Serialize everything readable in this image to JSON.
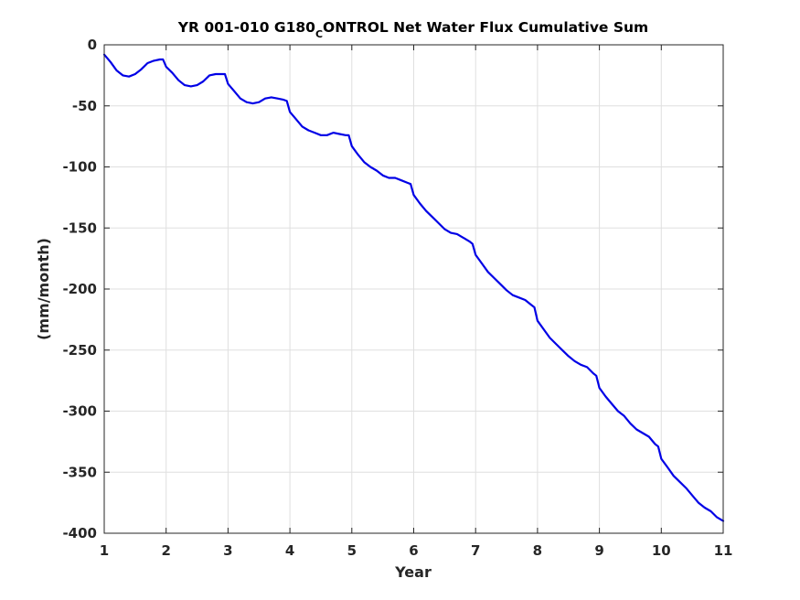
{
  "chart_data": {
    "type": "line",
    "title_main": "YR 001-010 G180",
    "title_sub": "C",
    "title_rest": "ONTROL Net Water Flux Cumulative Sum",
    "xlabel": "Year",
    "ylabel": "(mm/month)",
    "xlim": [
      1,
      11
    ],
    "ylim": [
      -400,
      0
    ],
    "x_ticks": [
      "1",
      "2",
      "3",
      "4",
      "5",
      "6",
      "7",
      "8",
      "9",
      "10",
      "11"
    ],
    "y_ticks": [
      "0",
      "-50",
      "-100",
      "-150",
      "-200",
      "-250",
      "-300",
      "-350",
      "-400"
    ],
    "grid": true,
    "series": [
      {
        "color": "#0000e6",
        "x": [
          1.0,
          1.1,
          1.2,
          1.3,
          1.4,
          1.5,
          1.6,
          1.7,
          1.8,
          1.9,
          1.95,
          2.0,
          2.1,
          2.2,
          2.3,
          2.4,
          2.5,
          2.6,
          2.7,
          2.8,
          2.9,
          2.95,
          3.0,
          3.1,
          3.2,
          3.3,
          3.4,
          3.5,
          3.6,
          3.7,
          3.8,
          3.9,
          3.95,
          4.0,
          4.1,
          4.2,
          4.3,
          4.4,
          4.5,
          4.6,
          4.7,
          4.8,
          4.9,
          4.95,
          5.0,
          5.1,
          5.2,
          5.3,
          5.4,
          5.5,
          5.6,
          5.7,
          5.8,
          5.9,
          5.95,
          6.0,
          6.1,
          6.2,
          6.3,
          6.4,
          6.5,
          6.6,
          6.7,
          6.8,
          6.9,
          6.95,
          7.0,
          7.1,
          7.2,
          7.3,
          7.4,
          7.5,
          7.6,
          7.7,
          7.8,
          7.9,
          7.95,
          8.0,
          8.1,
          8.2,
          8.3,
          8.4,
          8.5,
          8.6,
          8.7,
          8.8,
          8.9,
          8.95,
          9.0,
          9.1,
          9.2,
          9.3,
          9.4,
          9.5,
          9.6,
          9.7,
          9.8,
          9.9,
          9.95,
          10.0,
          10.1,
          10.2,
          10.3,
          10.4,
          10.5,
          10.6,
          10.7,
          10.8,
          10.9,
          11.0
        ],
        "values": [
          -8,
          -14,
          -21,
          -25,
          -26,
          -24,
          -20,
          -15,
          -13,
          -12,
          -12,
          -18,
          -23,
          -29,
          -33,
          -34,
          -33,
          -30,
          -25,
          -24,
          -24,
          -24,
          -32,
          -38,
          -44,
          -47,
          -48,
          -47,
          -44,
          -43,
          -44,
          -45,
          -46,
          -55,
          -61,
          -67,
          -70,
          -72,
          -74,
          -74,
          -72,
          -73,
          -74,
          -74,
          -83,
          -90,
          -96,
          -100,
          -103,
          -107,
          -109,
          -109,
          -111,
          -113,
          -114,
          -123,
          -130,
          -136,
          -141,
          -146,
          -151,
          -154,
          -155,
          -158,
          -161,
          -163,
          -172,
          -179,
          -186,
          -191,
          -196,
          -201,
          -205,
          -207,
          -209,
          -213,
          -215,
          -226,
          -233,
          -240,
          -245,
          -250,
          -255,
          -259,
          -262,
          -264,
          -269,
          -271,
          -281,
          -288,
          -294,
          -300,
          -304,
          -310,
          -315,
          -318,
          -321,
          -327,
          -329,
          -339,
          -346,
          -353,
          -358,
          -363,
          -369,
          -375,
          -379,
          -382,
          -387,
          -390
        ]
      }
    ]
  }
}
